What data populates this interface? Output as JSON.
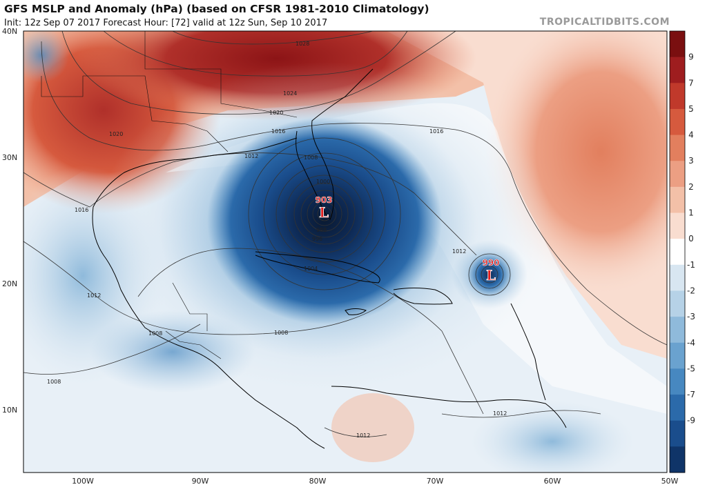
{
  "header": {
    "title": "GFS MSLP and Anomaly (hPa) (based on CFSR 1981-2010 Climatology)",
    "subtitle": "Init: 12z Sep 07 2017   Forecast Hour: [72]   valid at 12z Sun, Sep 10 2017",
    "brand": "TROPICALTIDBITS.COM"
  },
  "map": {
    "lat_labels": [
      "40N",
      "30N",
      "20N",
      "10N"
    ],
    "lon_labels": [
      "100W",
      "90W",
      "80W",
      "70W",
      "60W",
      "50W"
    ],
    "colorbar": {
      "ticks": [
        "9",
        "7",
        "5",
        "4",
        "3",
        "2",
        "1",
        "0",
        "-1",
        "-2",
        "-3",
        "-4",
        "-5",
        "-7",
        "-9"
      ],
      "colors": [
        "#7a0f10",
        "#9e1d1f",
        "#c0392b",
        "#d65a3e",
        "#e27f5e",
        "#ec9f83",
        "#f3c0a8",
        "#f9ddd0",
        "#ffffff",
        "#d8e6f1",
        "#b6d2e7",
        "#8fbadb",
        "#6aa2cf",
        "#4788c0",
        "#2b6aaa",
        "#1a4d8c",
        "#0f3468"
      ]
    },
    "isobars": {
      "labels": [
        "1028",
        "1024",
        "1020",
        "1020",
        "1016",
        "1016",
        "1016",
        "1012",
        "1008",
        "1000",
        "988",
        "996",
        "1004",
        "1012",
        "1008",
        "1008",
        "1008",
        "1012",
        "1012",
        "1012"
      ]
    },
    "lows": [
      {
        "pressure": "903",
        "symbol": "L",
        "lon": -80.8,
        "lat": 25.3
      },
      {
        "pressure": "990",
        "symbol": "L",
        "lon": -65.3,
        "lat": 20.7
      }
    ]
  }
}
